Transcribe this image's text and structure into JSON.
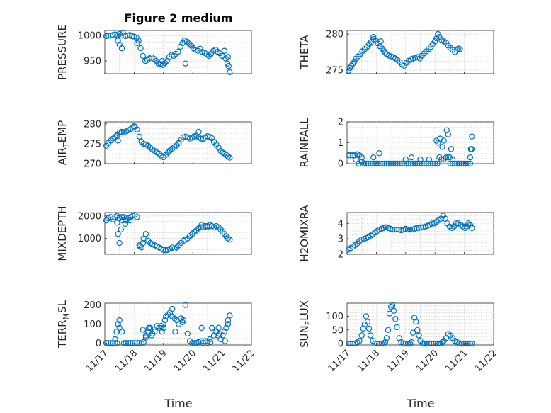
{
  "figure": {
    "title": "Figure 2 medium",
    "xlabel": "Time",
    "marker_color": "#0072bd",
    "xticks": [
      "11/17",
      "11/18",
      "11/19",
      "11/20",
      "11/21",
      "11/22"
    ]
  },
  "chart_data": [
    {
      "type": "scatter",
      "name": "pressure",
      "ylabel": "PRESSURE",
      "marker": "circle",
      "grid": true,
      "xlim": [
        0,
        5
      ],
      "ylim": [
        925,
        1010
      ],
      "yticks": [
        950,
        1000
      ],
      "x": [
        0.05,
        0.12,
        0.2,
        0.28,
        0.35,
        0.42,
        0.5,
        0.55,
        0.62,
        0.7,
        0.78,
        0.85,
        0.92,
        1.0,
        1.08,
        1.15,
        1.22,
        1.3,
        1.38,
        1.45,
        1.52,
        1.6,
        1.68,
        1.75,
        1.82,
        1.9,
        1.98,
        2.05,
        2.12,
        2.2,
        2.28,
        2.35,
        2.42,
        2.5,
        2.58,
        2.65,
        2.72,
        2.8,
        2.88,
        2.95,
        3.02,
        3.1,
        3.18,
        3.25,
        3.32,
        3.4,
        3.48,
        3.55,
        3.62,
        3.7,
        3.78,
        3.85,
        3.92,
        4.0,
        4.08,
        4.12,
        4.18,
        4.22,
        4.26,
        0.45,
        0.5,
        0.58,
        1.1,
        1.95,
        2.75,
        4.2
      ],
      "y": [
        999,
        1000,
        1000,
        1001,
        1002,
        1001,
        1003,
        1000,
        1005,
        999,
        1000,
        1001,
        999,
        998,
        996,
        990,
        975,
        960,
        950,
        952,
        955,
        957,
        954,
        950,
        945,
        944,
        942,
        946,
        950,
        958,
        962,
        960,
        964,
        968,
        978,
        985,
        990,
        988,
        984,
        980,
        975,
        972,
        970,
        974,
        968,
        966,
        963,
        960,
        964,
        970,
        972,
        968,
        965,
        960,
        970,
        955,
        945,
        940,
        928,
        990,
        982,
        975,
        985,
        950,
        945,
        958
      ]
    },
    {
      "type": "scatter",
      "name": "theta",
      "ylabel": "THETA",
      "marker": "circle",
      "grid": true,
      "xlim": [
        0,
        5
      ],
      "ylim": [
        274.5,
        280.5
      ],
      "yticks": [
        275,
        280
      ],
      "x": [
        0.05,
        0.1,
        0.15,
        0.2,
        0.25,
        0.3,
        0.38,
        0.45,
        0.52,
        0.6,
        0.68,
        0.75,
        0.82,
        0.9,
        0.98,
        1.05,
        1.12,
        1.2,
        1.25,
        1.3,
        1.35,
        1.42,
        1.5,
        1.58,
        1.65,
        1.72,
        1.8,
        1.88,
        1.95,
        2.02,
        2.1,
        2.18,
        2.25,
        2.32,
        2.4,
        2.48,
        2.55,
        2.62,
        2.7,
        2.78,
        2.85,
        2.92,
        3.0,
        3.05,
        3.1,
        3.15,
        3.22,
        3.3,
        3.38,
        3.45,
        3.52,
        3.6,
        3.68,
        3.75,
        3.8,
        3.85,
        0.9,
        1.15
      ],
      "y": [
        274.9,
        275.3,
        275.6,
        275.9,
        276.2,
        276.6,
        276.9,
        277.2,
        277.6,
        277.9,
        278.2,
        278.6,
        278.9,
        279.3,
        279.1,
        278.7,
        278.3,
        278.0,
        277.7,
        277.4,
        277.2,
        277.0,
        276.9,
        276.8,
        276.6,
        276.4,
        276.1,
        275.8,
        275.6,
        276.0,
        276.3,
        276.5,
        276.6,
        276.7,
        276.8,
        276.6,
        277.0,
        277.3,
        277.6,
        277.9,
        278.2,
        278.6,
        279.0,
        279.4,
        280.0,
        279.6,
        279.2,
        279.0,
        278.8,
        278.4,
        278.1,
        277.8,
        277.5,
        277.8,
        278.0,
        277.9,
        279.6,
        279.0
      ]
    },
    {
      "type": "scatter",
      "name": "air_temp",
      "ylabel": "AIR_T_EMP",
      "ylabel_main": "AIR",
      "ylabel_sub": "T",
      "ylabel_rest": "EMP",
      "marker": "circle",
      "grid": true,
      "xlim": [
        0,
        5
      ],
      "ylim": [
        270,
        280.5
      ],
      "yticks": [
        270,
        275,
        280
      ],
      "x": [
        0.05,
        0.12,
        0.2,
        0.28,
        0.35,
        0.42,
        0.5,
        0.58,
        0.65,
        0.72,
        0.8,
        0.88,
        0.95,
        1.02,
        1.1,
        1.18,
        1.25,
        1.32,
        1.4,
        1.48,
        1.55,
        1.62,
        1.7,
        1.78,
        1.85,
        1.92,
        2.0,
        2.08,
        2.15,
        2.22,
        2.3,
        2.38,
        2.45,
        2.52,
        2.6,
        2.68,
        2.75,
        2.82,
        2.9,
        2.98,
        3.05,
        3.12,
        3.2,
        3.28,
        3.35,
        3.42,
        3.5,
        3.58,
        3.65,
        3.72,
        3.8,
        3.88,
        3.95,
        4.02,
        4.08,
        4.14,
        4.2,
        4.26,
        0.4,
        0.45,
        1.0,
        3.2
      ],
      "y": [
        274.5,
        275.2,
        275.8,
        276.3,
        276.7,
        277.2,
        277.8,
        278.0,
        277.9,
        278.1,
        278.4,
        278.7,
        279.0,
        279.3,
        278.6,
        276.8,
        275.5,
        275.0,
        274.8,
        274.5,
        274.0,
        273.6,
        273.2,
        272.8,
        272.5,
        272.0,
        271.6,
        272.2,
        272.8,
        273.3,
        273.8,
        274.2,
        274.6,
        275.2,
        276.0,
        276.6,
        276.8,
        276.6,
        276.3,
        276.5,
        276.9,
        277.0,
        276.6,
        276.3,
        276.2,
        276.5,
        276.9,
        276.7,
        276.4,
        275.5,
        274.8,
        274.0,
        273.2,
        272.8,
        272.5,
        272.2,
        271.8,
        271.5,
        277.0,
        275.8,
        279.4,
        278.0
      ]
    },
    {
      "type": "scatter",
      "name": "rainfall",
      "ylabel": "RAINFALL",
      "marker": "circle",
      "grid": true,
      "xlim": [
        0,
        5
      ],
      "ylim": [
        0,
        2
      ],
      "yticks": [
        0,
        1,
        2
      ],
      "x": [
        0.05,
        0.12,
        0.2,
        0.28,
        0.35,
        0.42,
        0.5,
        0.58,
        0.65,
        0.72,
        0.8,
        0.88,
        0.95,
        1.0,
        1.05,
        1.12,
        1.2,
        1.28,
        1.35,
        1.42,
        1.5,
        1.58,
        1.65,
        1.72,
        1.8,
        1.88,
        1.95,
        2.02,
        2.1,
        2.18,
        2.25,
        2.32,
        2.4,
        2.48,
        2.55,
        2.62,
        2.7,
        2.78,
        2.85,
        2.92,
        3.0,
        3.08,
        3.15,
        3.22,
        3.3,
        3.38,
        3.45,
        3.52,
        3.6,
        3.68,
        3.75,
        3.82,
        3.9,
        3.98,
        4.05,
        4.12,
        4.2,
        4.22,
        4.26,
        0.3,
        0.4,
        0.45,
        0.5,
        0.9,
        1.1,
        2.0,
        2.2,
        2.5,
        2.8,
        3.05,
        3.1,
        3.18,
        3.25,
        3.3,
        3.4,
        3.45,
        3.5,
        3.55,
        3.6,
        4.2,
        4.25
      ],
      "y": [
        0.4,
        0.4,
        0.4,
        0.4,
        0.45,
        0.4,
        0.3,
        0.0,
        0.0,
        0.0,
        0.0,
        0.0,
        0.0,
        0.0,
        0.0,
        0.0,
        0.0,
        0.0,
        0.0,
        0.0,
        0.0,
        0.0,
        0.0,
        0.0,
        0.0,
        0.0,
        0.0,
        0.0,
        0.0,
        0.0,
        0.0,
        0.0,
        0.0,
        0.0,
        0.0,
        0.0,
        0.0,
        0.0,
        0.0,
        0.0,
        0.0,
        0.0,
        0.3,
        0.2,
        0.2,
        0.3,
        0.3,
        0.0,
        0.0,
        0.0,
        0.0,
        0.0,
        0.0,
        0.0,
        0.0,
        0.0,
        0.0,
        0.7,
        1.3,
        0.2,
        0.0,
        0.1,
        0.1,
        0.3,
        0.5,
        0.2,
        0.3,
        0.2,
        0.2,
        1.1,
        1.0,
        1.2,
        0.8,
        1.1,
        1.6,
        1.4,
        0.3,
        0.7,
        0.2,
        0.3,
        0.7
      ]
    },
    {
      "type": "scatter",
      "name": "mixdepth",
      "ylabel": "MIXDEPTH",
      "marker": "circle",
      "grid": true,
      "xlim": [
        0,
        5
      ],
      "ylim": [
        300,
        2150
      ],
      "yticks": [
        1000,
        2000
      ],
      "x": [
        0.05,
        0.12,
        0.2,
        0.28,
        0.35,
        0.42,
        0.5,
        0.58,
        0.65,
        0.72,
        0.8,
        0.88,
        0.95,
        1.02,
        1.1,
        1.18,
        1.25,
        1.32,
        1.4,
        1.48,
        1.55,
        1.62,
        1.7,
        1.78,
        1.85,
        1.92,
        2.0,
        2.08,
        2.15,
        2.22,
        2.3,
        2.38,
        2.45,
        2.52,
        2.6,
        2.68,
        2.75,
        2.82,
        2.9,
        2.98,
        3.05,
        3.12,
        3.2,
        3.28,
        3.35,
        3.42,
        3.5,
        3.58,
        3.65,
        3.72,
        3.8,
        3.88,
        3.95,
        4.02,
        4.08,
        4.14,
        4.2,
        4.26,
        0.42,
        0.45,
        0.5,
        0.55,
        0.6,
        0.7,
        0.85,
        1.2,
        1.3,
        3.3,
        3.5
      ],
      "y": [
        1800,
        1900,
        1950,
        1850,
        1950,
        2000,
        1900,
        1950,
        1950,
        1800,
        1900,
        1950,
        2000,
        2050,
        1950,
        700,
        600,
        1000,
        1200,
        900,
        800,
        750,
        700,
        650,
        600,
        550,
        500,
        480,
        500,
        550,
        600,
        550,
        600,
        700,
        800,
        900,
        950,
        1000,
        1100,
        1200,
        1300,
        1350,
        1450,
        1500,
        1500,
        1550,
        1550,
        1600,
        1550,
        1500,
        1550,
        1500,
        1400,
        1300,
        1200,
        1100,
        1000,
        950,
        1700,
        1200,
        800,
        1400,
        1800,
        1650,
        1800,
        650,
        800,
        1600,
        1500
      ]
    },
    {
      "type": "scatter",
      "name": "h2omixra",
      "ylabel": "H2OMIXRA",
      "marker": "circle",
      "grid": true,
      "xlim": [
        0,
        5
      ],
      "ylim": [
        2,
        4.7
      ],
      "yticks": [
        2,
        3,
        4
      ],
      "x": [
        0.05,
        0.12,
        0.2,
        0.28,
        0.35,
        0.42,
        0.5,
        0.58,
        0.65,
        0.72,
        0.8,
        0.88,
        0.95,
        1.02,
        1.1,
        1.18,
        1.25,
        1.32,
        1.4,
        1.48,
        1.55,
        1.62,
        1.7,
        1.78,
        1.85,
        1.92,
        2.0,
        2.08,
        2.15,
        2.22,
        2.3,
        2.38,
        2.45,
        2.52,
        2.6,
        2.68,
        2.75,
        2.82,
        2.9,
        2.98,
        3.05,
        3.12,
        3.2,
        3.28,
        3.35,
        3.42,
        3.5,
        3.58,
        3.65,
        3.72,
        3.8,
        3.88,
        3.95,
        4.02,
        4.08,
        4.14,
        4.2,
        4.26
      ],
      "y": [
        2.3,
        2.4,
        2.5,
        2.6,
        2.7,
        2.85,
        2.95,
        3.0,
        3.05,
        3.1,
        3.2,
        3.3,
        3.4,
        3.5,
        3.6,
        3.65,
        3.7,
        3.75,
        3.7,
        3.65,
        3.6,
        3.6,
        3.6,
        3.6,
        3.55,
        3.6,
        3.65,
        3.6,
        3.6,
        3.6,
        3.65,
        3.7,
        3.7,
        3.75,
        3.75,
        3.8,
        3.85,
        3.9,
        4.0,
        4.0,
        4.1,
        4.2,
        4.3,
        4.5,
        4.3,
        4.0,
        3.8,
        3.7,
        3.8,
        4.0,
        4.0,
        3.9,
        3.8,
        3.7,
        3.8,
        4.0,
        3.9,
        3.7
      ]
    },
    {
      "type": "scatter",
      "name": "terr_msl",
      "ylabel": "TERR_M_SL",
      "ylabel_main": "TERR",
      "ylabel_sub": "M",
      "ylabel_rest": "SL",
      "marker": "circle",
      "grid": true,
      "xlim": [
        0,
        5
      ],
      "ylim": [
        -10,
        210
      ],
      "yticks": [
        0,
        100,
        200
      ],
      "x": [
        0.05,
        0.12,
        0.2,
        0.28,
        0.35,
        0.42,
        0.5,
        0.58,
        0.65,
        0.72,
        0.8,
        0.88,
        0.95,
        1.02,
        1.1,
        1.18,
        1.25,
        1.32,
        1.4,
        1.48,
        1.55,
        1.62,
        1.7,
        1.78,
        1.85,
        1.92,
        2.0,
        2.08,
        2.15,
        2.22,
        2.3,
        2.38,
        2.45,
        2.52,
        2.6,
        2.68,
        2.75,
        2.82,
        2.9,
        2.98,
        3.05,
        3.12,
        3.2,
        3.28,
        3.35,
        3.42,
        3.5,
        3.58,
        3.65,
        3.72,
        3.8,
        3.88,
        3.95,
        4.02,
        4.08,
        4.14,
        4.2,
        4.26,
        0.35,
        0.4,
        0.45,
        0.5,
        1.3,
        1.4,
        1.5,
        1.6,
        1.95,
        2.0,
        2.05,
        2.3,
        2.4,
        2.65,
        3.3,
        3.5,
        3.6,
        3.85,
        3.9,
        4.1,
        4.2
      ],
      "y": [
        0,
        0,
        0,
        0,
        0,
        0,
        80,
        60,
        0,
        0,
        0,
        0,
        0,
        0,
        0,
        0,
        0,
        5,
        40,
        60,
        80,
        50,
        60,
        90,
        80,
        90,
        100,
        140,
        150,
        160,
        180,
        130,
        120,
        100,
        130,
        120,
        200,
        50,
        10,
        0,
        0,
        0,
        5,
        10,
        0,
        10,
        0,
        20,
        80,
        40,
        60,
        80,
        20,
        40,
        60,
        80,
        100,
        145,
        20,
        60,
        100,
        120,
        70,
        30,
        80,
        40,
        60,
        80,
        120,
        140,
        60,
        110,
        80,
        10,
        5,
        40,
        50,
        10,
        120
      ]
    },
    {
      "type": "scatter",
      "name": "sun_flux",
      "ylabel": "SUN_F_LUX",
      "ylabel_main": "SUN",
      "ylabel_sub": "F",
      "ylabel_rest": "LUX",
      "marker": "circle",
      "grid": true,
      "xlim": [
        0,
        5
      ],
      "ylim": [
        -5,
        148
      ],
      "yticks": [
        0,
        50,
        100
      ],
      "x": [
        0.05,
        0.12,
        0.2,
        0.28,
        0.35,
        0.42,
        0.5,
        0.55,
        0.6,
        0.65,
        0.7,
        0.75,
        0.8,
        0.88,
        0.95,
        1.02,
        1.1,
        1.18,
        1.25,
        1.3,
        1.35,
        1.4,
        1.45,
        1.5,
        1.55,
        1.6,
        1.65,
        1.7,
        1.78,
        1.85,
        1.92,
        2.0,
        2.08,
        2.15,
        2.2,
        2.25,
        2.3,
        2.35,
        2.4,
        2.45,
        2.5,
        2.58,
        2.65,
        2.72,
        2.8,
        2.88,
        2.95,
        3.02,
        3.1,
        3.15,
        3.2,
        3.25,
        3.3,
        3.38,
        3.45,
        3.52,
        3.6,
        3.68,
        3.75,
        3.82,
        3.9,
        3.98,
        4.05,
        4.12,
        4.2,
        4.26
      ],
      "y": [
        0,
        0,
        0,
        0,
        5,
        10,
        30,
        55,
        70,
        100,
        80,
        55,
        30,
        10,
        0,
        0,
        0,
        0,
        0,
        5,
        20,
        50,
        110,
        135,
        140,
        120,
        90,
        60,
        20,
        5,
        0,
        0,
        0,
        0,
        5,
        40,
        95,
        80,
        50,
        30,
        10,
        0,
        0,
        0,
        0,
        0,
        0,
        0,
        0,
        0,
        0,
        5,
        10,
        20,
        35,
        30,
        20,
        10,
        5,
        0,
        0,
        0,
        0,
        0,
        0,
        0
      ]
    }
  ]
}
